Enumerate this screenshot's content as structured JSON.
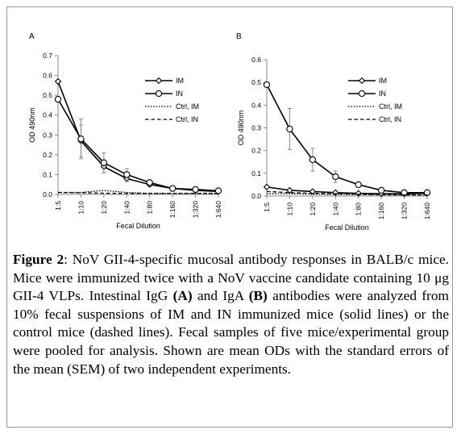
{
  "caption": {
    "figure_label": "Figure 2",
    "sep": ": ",
    "text1": "NoV GII-4-specific mucosal antibody responses in BALB/c mice. Mice were immunized twice with a NoV vaccine candidate containing 10 μg GII-4 VLPs. Intestinal IgG ",
    "mark_a": "(A)",
    "text2": " and IgA ",
    "mark_b": "(B)",
    "text3": " antibodies were analyzed from 10% fecal suspensions of IM and IN immunized mice (solid lines) or the control mice (dashed lines). Fecal samples of five mice/experimental group were pooled for analysis. Shown are mean ODs with the standard errors of the mean (SEM) of two independent experiments."
  },
  "colors": {
    "line": "#000000",
    "axis": "#8a8a8a",
    "errorbar": "#7f7f7f",
    "ctrl_dotted": "#000000"
  },
  "chart_data": [
    {
      "type": "line",
      "panel_label": "A",
      "categories": [
        "1:5",
        "1:10",
        "1:20",
        "1:40",
        "1:80",
        "1:160",
        "1:320",
        "1:640"
      ],
      "xlabel": "Fecal Dilution",
      "ylabel": "OD 490nm",
      "ylim": [
        0,
        0.7
      ],
      "yticks": [
        0,
        0.1,
        0.2,
        0.3,
        0.4,
        0.5,
        0.6,
        0.7
      ],
      "ytick_labels": [
        "0.0",
        "0.1",
        "0.2",
        "0.3",
        "0.4",
        "0.5",
        "0.6",
        "0.7"
      ],
      "grid": false,
      "legend_position": "top-right",
      "series": [
        {
          "name": "IM",
          "style": "solid",
          "marker": "diamond",
          "values": [
            0.57,
            0.27,
            0.14,
            0.08,
            0.05,
            0.03,
            0.02,
            0.015
          ],
          "errors": [
            0,
            0.08,
            0.03,
            0.015,
            0.01,
            0.005,
            0.003,
            0.002
          ]
        },
        {
          "name": "IN",
          "style": "solid",
          "marker": "circle",
          "values": [
            0.48,
            0.28,
            0.16,
            0.1,
            0.06,
            0.03,
            0.025,
            0.018
          ],
          "errors": [
            0,
            0.1,
            0.05,
            0.03,
            0.01,
            0.005,
            0.003,
            0.002
          ]
        },
        {
          "name": "Ctrl, IM",
          "style": "dotted",
          "marker": "none",
          "values": [
            0.01,
            0.01,
            0.02,
            0.01,
            0.005,
            0.005,
            0.005,
            0.005
          ],
          "errors": []
        },
        {
          "name": "Ctrl, IN",
          "style": "dashed",
          "marker": "none",
          "values": [
            0.01,
            0.008,
            0.006,
            0.005,
            0.005,
            0.005,
            0.005,
            0.005
          ],
          "errors": []
        }
      ]
    },
    {
      "type": "line",
      "panel_label": "B",
      "categories": [
        "1:5",
        "1:10",
        "1:20",
        "1:40",
        "1:80",
        "1:160",
        "1:320",
        "1:640"
      ],
      "xlabel": "Fecal Dilution",
      "ylabel": "OD 490nm",
      "ylim": [
        0,
        0.6
      ],
      "yticks": [
        0,
        0.1,
        0.2,
        0.3,
        0.4,
        0.5,
        0.6
      ],
      "ytick_labels": [
        "0.0",
        "0.1",
        "0.2",
        "0.3",
        "0.4",
        "0.5",
        "0.6"
      ],
      "grid": false,
      "legend_position": "top-right",
      "series": [
        {
          "name": "IM",
          "style": "solid",
          "marker": "diamond",
          "values": [
            0.04,
            0.025,
            0.02,
            0.015,
            0.012,
            0.01,
            0.01,
            0.012
          ],
          "errors": [
            0.003,
            0.003,
            0.003,
            0.002,
            0.002,
            0.002,
            0.002,
            0.002
          ]
        },
        {
          "name": "IN",
          "style": "solid",
          "marker": "circle",
          "values": [
            0.49,
            0.295,
            0.16,
            0.085,
            0.05,
            0.025,
            0.015,
            0.015
          ],
          "errors": [
            0,
            0.09,
            0.05,
            0.025,
            0.01,
            0.005,
            0.003,
            0.003
          ]
        },
        {
          "name": "Ctrl, IM",
          "style": "dotted",
          "marker": "none",
          "values": [
            0.01,
            0.01,
            0.008,
            0.007,
            0.006,
            0.005,
            0.005,
            0.005
          ],
          "errors": []
        },
        {
          "name": "Ctrl, IN",
          "style": "dashed",
          "marker": "none",
          "values": [
            0.02,
            0.015,
            0.012,
            0.01,
            0.008,
            0.006,
            0.005,
            0.005
          ],
          "errors": []
        }
      ]
    }
  ]
}
